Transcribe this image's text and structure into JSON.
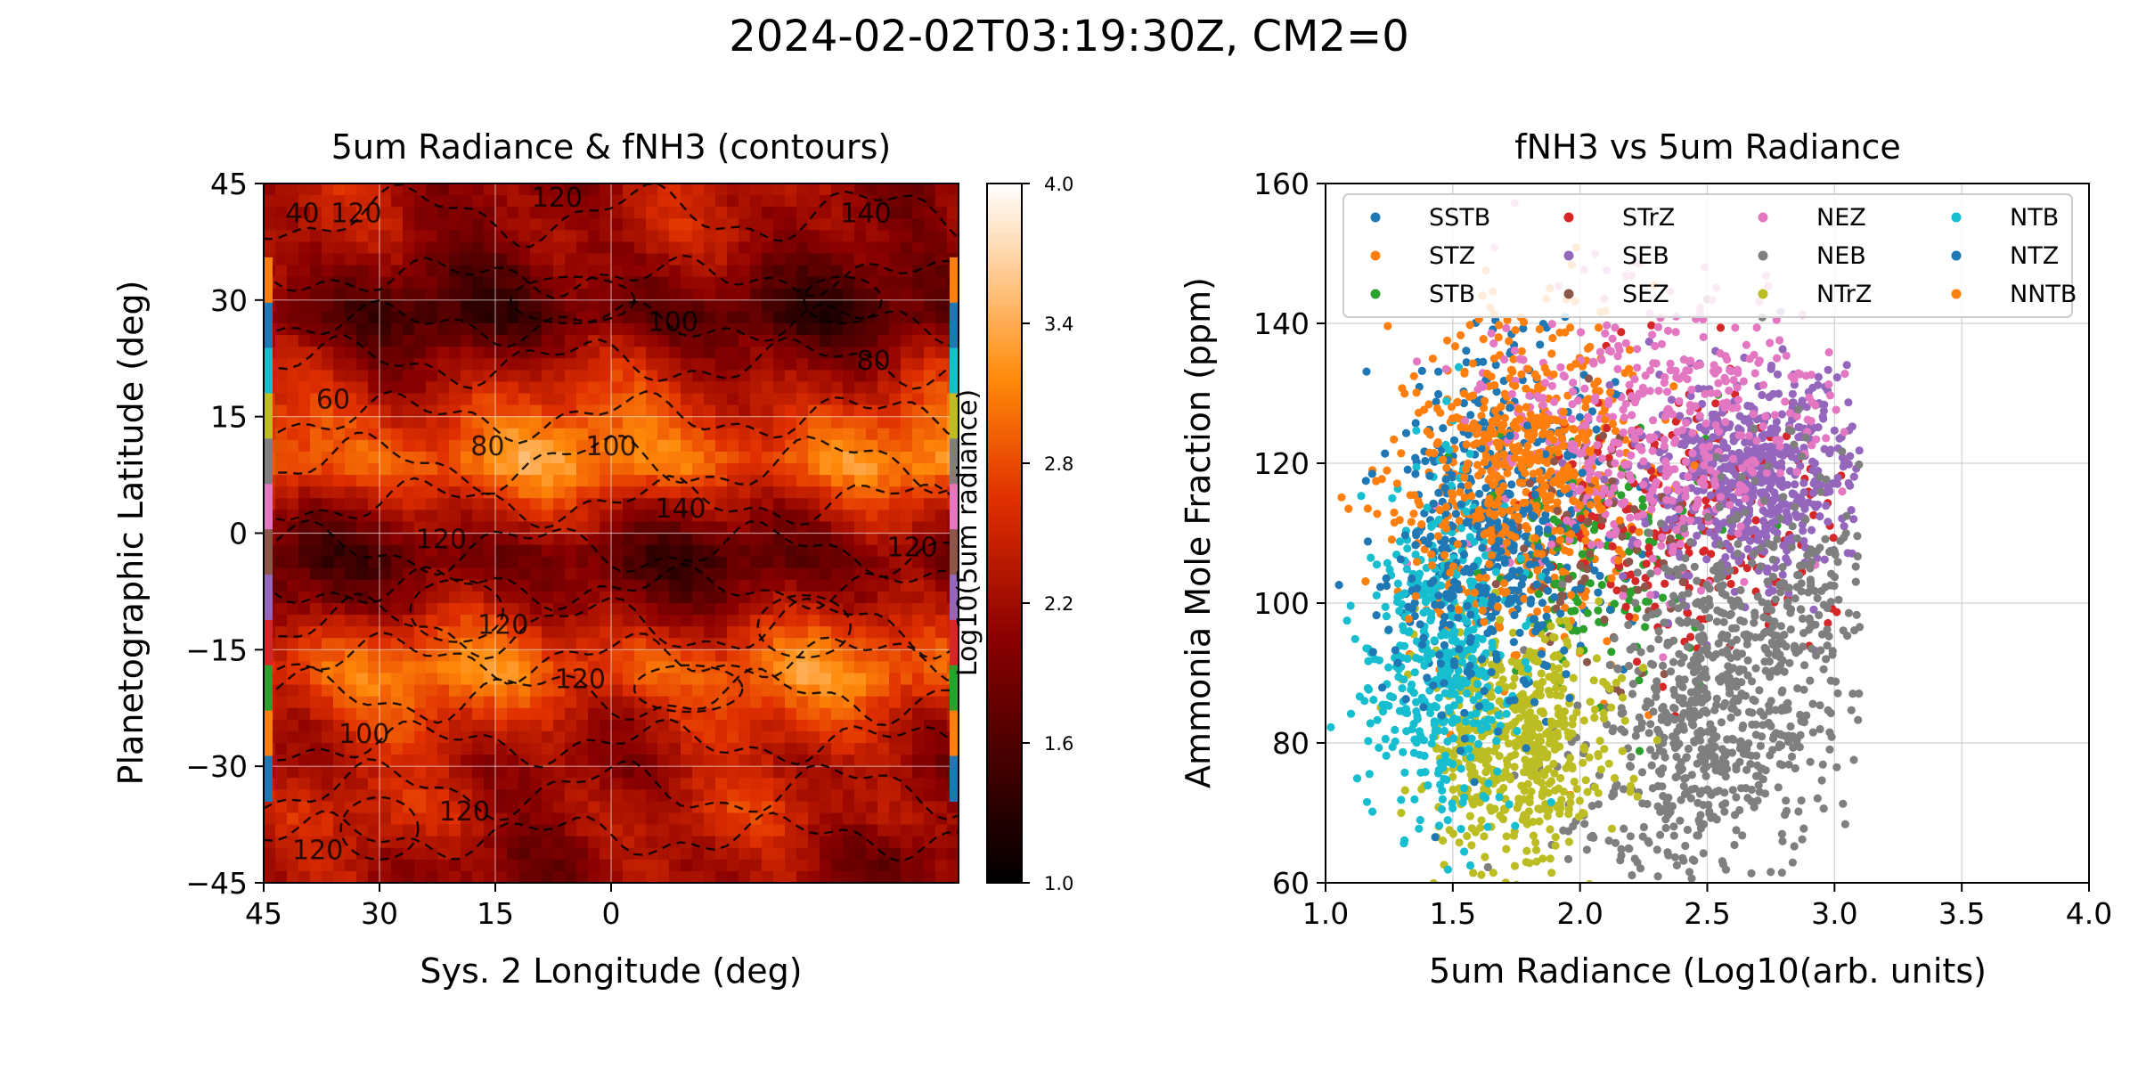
{
  "figure": {
    "suptitle": "2024-02-02T03:19:30Z, CM2=0"
  },
  "chart_data": [
    {
      "type": "heatmap",
      "title": "5um Radiance & fNH3 (contours)",
      "xlabel": "Sys. 2 Longitude (deg)",
      "ylabel": "Planetographic Latitude (deg)",
      "xlim": [
        45,
        -45
      ],
      "ylim": [
        -45,
        45
      ],
      "xticks": [
        45,
        30,
        15,
        0
      ],
      "yticks": [
        45,
        30,
        15,
        0,
        -15,
        -30,
        -45
      ],
      "ytick_labels": [
        "45",
        "30",
        "15",
        "0",
        "−15",
        "−30",
        "−45"
      ],
      "grid": true,
      "colormap": "gist_heat",
      "colorbar": {
        "label": "Log10(5um radiance)",
        "range": [
          1.0,
          4.0
        ],
        "ticks": [
          "4.0",
          "3.4",
          "2.8",
          "2.2",
          "1.6",
          "1.0"
        ]
      },
      "radiance_bands": [
        {
          "lat": 38,
          "value": 2.2
        },
        {
          "lat": 28,
          "value": 1.6
        },
        {
          "lat": 21,
          "value": 2.3
        },
        {
          "lat": 14,
          "value": 2.8
        },
        {
          "lat": 9,
          "value": 3.1
        },
        {
          "lat": 3,
          "value": 2.3
        },
        {
          "lat": -3,
          "value": 1.7
        },
        {
          "lat": -9,
          "value": 2.1
        },
        {
          "lat": -14,
          "value": 2.7
        },
        {
          "lat": -18,
          "value": 3.0
        },
        {
          "lat": -24,
          "value": 2.5
        },
        {
          "lat": -30,
          "value": 2.2
        },
        {
          "lat": -36,
          "value": 2.4
        },
        {
          "lat": -42,
          "value": 2.1
        }
      ],
      "contour_labels": [
        {
          "lon": 40,
          "lat": 41,
          "text": "40"
        },
        {
          "lon": 33,
          "lat": 41,
          "text": "120"
        },
        {
          "lon": 7,
          "lat": 43,
          "text": "120"
        },
        {
          "lon": -33,
          "lat": 41,
          "text": "140"
        },
        {
          "lon": -8,
          "lat": 27,
          "text": "100"
        },
        {
          "lon": -34,
          "lat": 22,
          "text": "80"
        },
        {
          "lon": 36,
          "lat": 17,
          "text": "60"
        },
        {
          "lon": 16,
          "lat": 11,
          "text": "80"
        },
        {
          "lon": 0,
          "lat": 11,
          "text": "100"
        },
        {
          "lon": -9,
          "lat": 3,
          "text": "140"
        },
        {
          "lon": 22,
          "lat": -1,
          "text": "120"
        },
        {
          "lon": -39,
          "lat": -2,
          "text": "120"
        },
        {
          "lon": 14,
          "lat": -12,
          "text": "120"
        },
        {
          "lon": 4,
          "lat": -19,
          "text": "120"
        },
        {
          "lon": 32,
          "lat": -26,
          "text": "100"
        },
        {
          "lon": 19,
          "lat": -36,
          "text": "120"
        },
        {
          "lon": 38,
          "lat": -41,
          "text": "120"
        }
      ],
      "zone_strip_colors": [
        "#ff7f0e",
        "#1f77b4",
        "#17becf",
        "#bcbd22",
        "#7f7f7f",
        "#e377c2",
        "#8c564b",
        "#9467bd",
        "#d62728",
        "#2ca02c",
        "#ff7f0e",
        "#1f77b4"
      ]
    },
    {
      "type": "scatter",
      "title": "fNH3 vs 5um Radiance",
      "xlabel": "5um Radiance (Log10(arb. units)",
      "ylabel": "Ammonia Mole Fraction (ppm)",
      "xlim": [
        1.0,
        4.0
      ],
      "ylim": [
        60,
        160
      ],
      "xticks": [
        "1.0",
        "1.5",
        "2.0",
        "2.5",
        "3.0",
        "3.5",
        "4.0"
      ],
      "yticks": [
        "60",
        "80",
        "100",
        "120",
        "140",
        "160"
      ],
      "grid": true,
      "legend_position": "top",
      "series": [
        {
          "name": "SSTB",
          "color": "#1f77b4",
          "cx": 1.75,
          "cy": 115,
          "sx": 0.22,
          "sy": 12,
          "n": 300
        },
        {
          "name": "STZ",
          "color": "#ff7f0e",
          "cx": 1.8,
          "cy": 118,
          "sx": 0.25,
          "sy": 12,
          "n": 420
        },
        {
          "name": "STB",
          "color": "#2ca02c",
          "cx": 2.1,
          "cy": 108,
          "sx": 0.22,
          "sy": 10,
          "n": 140
        },
        {
          "name": "STrZ",
          "color": "#d62728",
          "cx": 2.45,
          "cy": 113,
          "sx": 0.3,
          "sy": 10,
          "n": 240
        },
        {
          "name": "SEB",
          "color": "#9467bd",
          "cx": 2.7,
          "cy": 118,
          "sx": 0.22,
          "sy": 7,
          "n": 650
        },
        {
          "name": "SEZ",
          "color": "#8c564b",
          "cx": 2.05,
          "cy": 110,
          "sx": 0.2,
          "sy": 10,
          "n": 80
        },
        {
          "name": "NEZ",
          "color": "#e377c2",
          "cx": 2.3,
          "cy": 125,
          "sx": 0.35,
          "sy": 10,
          "n": 450
        },
        {
          "name": "NEB",
          "color": "#7f7f7f",
          "cx": 2.55,
          "cy": 85,
          "sx": 0.28,
          "sy": 14,
          "n": 900
        },
        {
          "name": "NTrZ",
          "color": "#bcbd22",
          "cx": 1.75,
          "cy": 80,
          "sx": 0.18,
          "sy": 9,
          "n": 550
        },
        {
          "name": "NTB",
          "color": "#17becf",
          "cx": 1.45,
          "cy": 92,
          "sx": 0.15,
          "sy": 12,
          "n": 450
        },
        {
          "name": "NTZ",
          "color": "#1f77b4",
          "cx": 1.6,
          "cy": 105,
          "sx": 0.2,
          "sy": 12,
          "n": 250
        },
        {
          "name": "NNTB",
          "color": "#ff7f0e",
          "cx": 1.7,
          "cy": 120,
          "sx": 0.2,
          "sy": 10,
          "n": 250
        }
      ]
    }
  ]
}
